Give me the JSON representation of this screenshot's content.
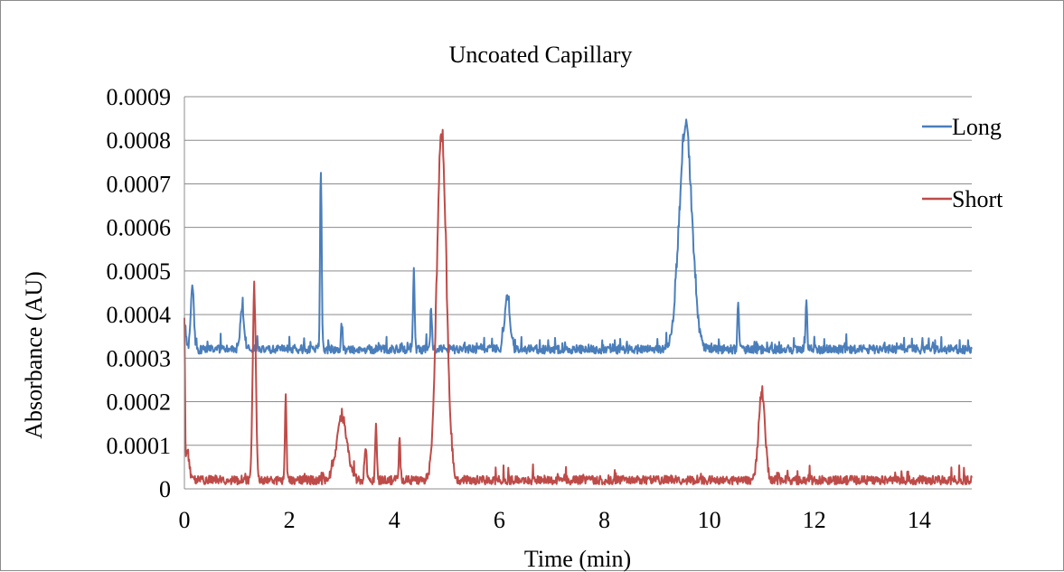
{
  "chart_data": {
    "type": "line",
    "title": "Uncoated Capillary",
    "xlabel": "Time (min)",
    "ylabel": "Absorbance (AU)",
    "xlim": [
      0,
      15
    ],
    "ylim": [
      0,
      0.0009
    ],
    "x_ticks": [
      0,
      2,
      4,
      6,
      8,
      10,
      12,
      14
    ],
    "x_tick_labels": [
      "0",
      "2",
      "4",
      "6",
      "8",
      "10",
      "12",
      "14"
    ],
    "y_ticks": [
      0,
      0.0001,
      0.0002,
      0.0003,
      0.0004,
      0.0005,
      0.0006,
      0.0007,
      0.0008,
      0.0009
    ],
    "y_tick_labels": [
      "0",
      "0.0001",
      "0.0002",
      "0.0003",
      "0.0004",
      "0.0005",
      "0.0006",
      "0.0007",
      "0.0008",
      "0.0009"
    ],
    "grid": "horizontal",
    "legend_position": "top-right",
    "series": [
      {
        "name": "Long",
        "color": "#4a7ebb",
        "baseline": 0.00031,
        "noise": 2e-05,
        "peaks": [
          {
            "x": 0.0,
            "y": 0.00038,
            "width": 0.03
          },
          {
            "x": 0.15,
            "y": 0.00047,
            "width": 0.03
          },
          {
            "x": 1.1,
            "y": 0.00041,
            "width": 0.04
          },
          {
            "x": 2.6,
            "y": 0.00074,
            "width": 0.015
          },
          {
            "x": 3.0,
            "y": 0.00038,
            "width": 0.015
          },
          {
            "x": 4.37,
            "y": 0.00051,
            "width": 0.015
          },
          {
            "x": 4.7,
            "y": 0.00042,
            "width": 0.015
          },
          {
            "x": 6.15,
            "y": 0.00044,
            "width": 0.05
          },
          {
            "x": 9.55,
            "y": 0.00085,
            "width": 0.12
          },
          {
            "x": 10.55,
            "y": 0.00044,
            "width": 0.015
          },
          {
            "x": 11.85,
            "y": 0.00043,
            "width": 0.015
          }
        ]
      },
      {
        "name": "Short",
        "color": "#be4b48",
        "baseline": 1e-05,
        "noise": 2e-05,
        "peaks": [
          {
            "x": 0.0,
            "y": 0.00037,
            "width": 0.01
          },
          {
            "x": 0.05,
            "y": 9e-05,
            "width": 0.04
          },
          {
            "x": 1.33,
            "y": 0.00047,
            "width": 0.03
          },
          {
            "x": 1.93,
            "y": 0.00022,
            "width": 0.015
          },
          {
            "x": 3.0,
            "y": 0.00017,
            "width": 0.1
          },
          {
            "x": 3.45,
            "y": 0.0001,
            "width": 0.02
          },
          {
            "x": 3.65,
            "y": 0.00016,
            "width": 0.015
          },
          {
            "x": 4.1,
            "y": 0.00012,
            "width": 0.015
          },
          {
            "x": 4.9,
            "y": 0.00085,
            "width": 0.09
          },
          {
            "x": 11.0,
            "y": 0.00023,
            "width": 0.06
          }
        ]
      }
    ]
  }
}
